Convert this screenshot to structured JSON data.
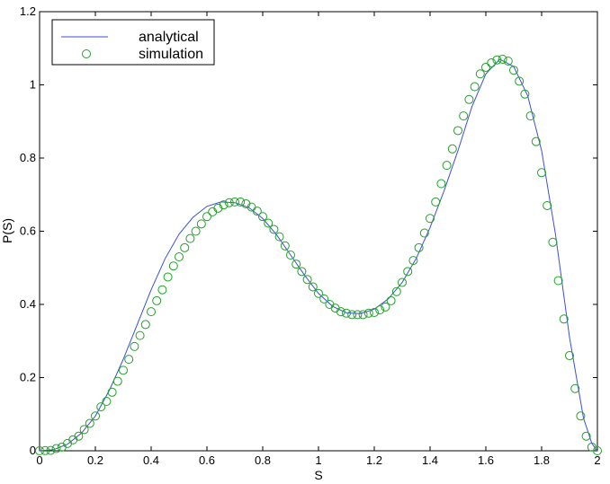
{
  "chart_data": {
    "type": "line",
    "xlabel": "S",
    "ylabel": "P(S)",
    "xlim": [
      0,
      2
    ],
    "ylim": [
      0,
      1.2
    ],
    "x_ticks": [
      "0",
      "0.2",
      "0.4",
      "0.6",
      "0.8",
      "1",
      "1.2",
      "1.4",
      "1.6",
      "1.8",
      "2"
    ],
    "y_ticks": [
      "0",
      "0.2",
      "0.4",
      "0.6",
      "0.8",
      "1",
      "1.2"
    ],
    "grid": false,
    "legend_position": "top-left",
    "series": [
      {
        "name": "analytical",
        "style": "line",
        "color": "#3b4fdc",
        "x": [
          0,
          0.05,
          0.1,
          0.15,
          0.2,
          0.25,
          0.3,
          0.35,
          0.4,
          0.45,
          0.5,
          0.55,
          0.6,
          0.65,
          0.7,
          0.75,
          0.8,
          0.85,
          0.9,
          0.95,
          1.0,
          1.05,
          1.1,
          1.15,
          1.2,
          1.25,
          1.3,
          1.35,
          1.4,
          1.45,
          1.5,
          1.55,
          1.6,
          1.65,
          1.7,
          1.75,
          1.8,
          1.85,
          1.9,
          1.95,
          1.98,
          2.0
        ],
        "y": [
          0,
          0.003,
          0.018,
          0.048,
          0.095,
          0.165,
          0.25,
          0.345,
          0.44,
          0.525,
          0.592,
          0.638,
          0.668,
          0.68,
          0.678,
          0.665,
          0.635,
          0.59,
          0.535,
          0.48,
          0.43,
          0.395,
          0.377,
          0.375,
          0.387,
          0.415,
          0.46,
          0.525,
          0.61,
          0.71,
          0.82,
          0.94,
          1.03,
          1.07,
          1.05,
          0.97,
          0.82,
          0.59,
          0.31,
          0.09,
          0.02,
          0
        ]
      },
      {
        "name": "simulation",
        "style": "markers",
        "color": "#22a02a",
        "x": [
          0,
          0.02,
          0.04,
          0.06,
          0.08,
          0.1,
          0.12,
          0.14,
          0.16,
          0.18,
          0.2,
          0.22,
          0.24,
          0.26,
          0.28,
          0.3,
          0.32,
          0.34,
          0.36,
          0.38,
          0.4,
          0.42,
          0.44,
          0.46,
          0.48,
          0.5,
          0.52,
          0.54,
          0.56,
          0.58,
          0.6,
          0.62,
          0.64,
          0.66,
          0.68,
          0.7,
          0.72,
          0.74,
          0.76,
          0.78,
          0.8,
          0.82,
          0.84,
          0.86,
          0.88,
          0.9,
          0.92,
          0.94,
          0.96,
          0.98,
          1.0,
          1.02,
          1.04,
          1.06,
          1.08,
          1.1,
          1.12,
          1.14,
          1.16,
          1.18,
          1.2,
          1.22,
          1.24,
          1.26,
          1.28,
          1.3,
          1.32,
          1.34,
          1.36,
          1.38,
          1.4,
          1.42,
          1.44,
          1.46,
          1.48,
          1.5,
          1.52,
          1.54,
          1.56,
          1.58,
          1.6,
          1.62,
          1.64,
          1.66,
          1.68,
          1.7,
          1.72,
          1.74,
          1.76,
          1.78,
          1.8,
          1.82,
          1.84,
          1.86,
          1.88,
          1.9,
          1.92,
          1.94,
          1.96,
          1.98,
          2.0
        ],
        "y": [
          0,
          0.0005,
          0.001,
          0.006,
          0.01,
          0.02,
          0.03,
          0.04,
          0.058,
          0.075,
          0.095,
          0.12,
          0.135,
          0.16,
          0.19,
          0.22,
          0.25,
          0.285,
          0.315,
          0.345,
          0.38,
          0.41,
          0.44,
          0.475,
          0.505,
          0.53,
          0.555,
          0.58,
          0.6,
          0.62,
          0.64,
          0.653,
          0.663,
          0.672,
          0.678,
          0.68,
          0.68,
          0.675,
          0.666,
          0.655,
          0.64,
          0.622,
          0.605,
          0.585,
          0.56,
          0.535,
          0.51,
          0.49,
          0.468,
          0.448,
          0.43,
          0.415,
          0.4,
          0.39,
          0.38,
          0.376,
          0.372,
          0.372,
          0.372,
          0.376,
          0.378,
          0.385,
          0.393,
          0.41,
          0.435,
          0.46,
          0.49,
          0.52,
          0.555,
          0.595,
          0.635,
          0.68,
          0.73,
          0.78,
          0.825,
          0.875,
          0.915,
          0.96,
          0.995,
          1.03,
          1.048,
          1.06,
          1.068,
          1.07,
          1.065,
          1.04,
          1.01,
          0.975,
          0.915,
          0.845,
          0.76,
          0.67,
          0.57,
          0.465,
          0.36,
          0.26,
          0.17,
          0.095,
          0.04,
          0.01,
          0
        ]
      }
    ]
  }
}
